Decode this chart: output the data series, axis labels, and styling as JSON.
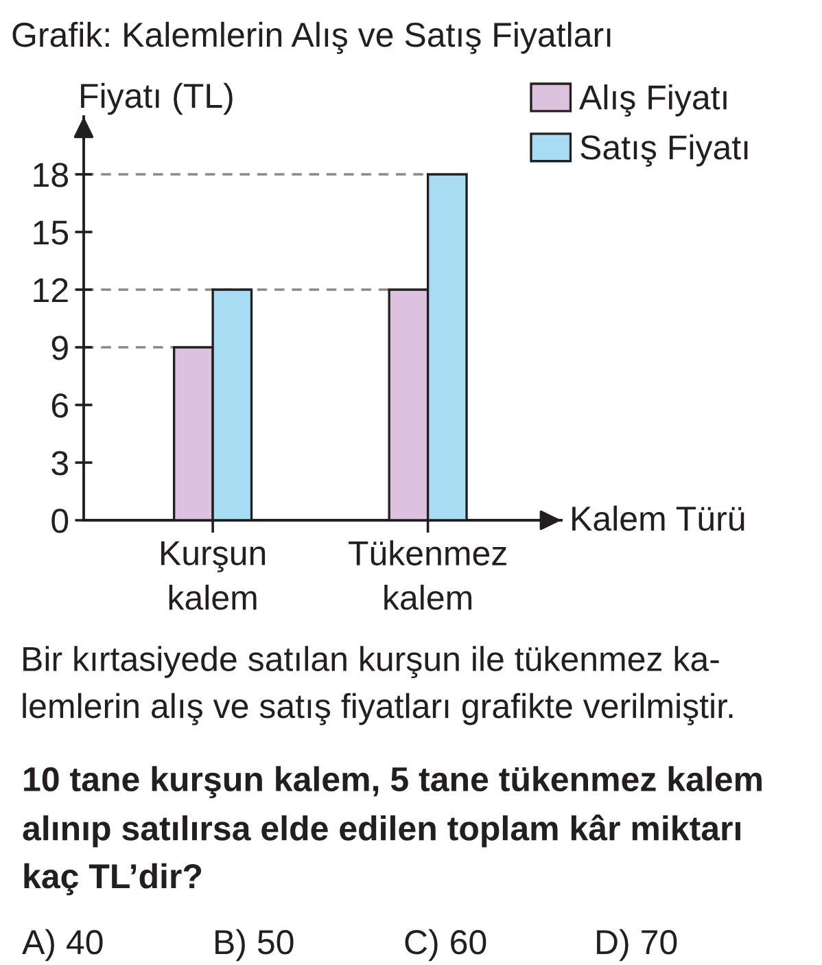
{
  "chart_data": {
    "type": "bar",
    "title": "Grafik: Kalemlerin Alış ve Satış Fiyatları",
    "ylabel": "Fiyatı (TL)",
    "xlabel": "Kalem Türü",
    "categories": [
      "Kurşun\nkalem",
      "Tükenmez\nkalem"
    ],
    "series": [
      {
        "name": "Alış Fiyatı",
        "color": "#dcc2df",
        "values": [
          9,
          12
        ]
      },
      {
        "name": "Satış Fiyatı",
        "color": "#a8dcf3",
        "values": [
          12,
          18
        ]
      }
    ],
    "ylim": [
      0,
      21
    ],
    "yticks": [
      0,
      3,
      6,
      9,
      12,
      15,
      18
    ],
    "grid": false,
    "legend": "top right",
    "ref_lines": [
      {
        "axis": "y",
        "value": 18,
        "line_style": "dashed",
        "color": "#8a8a8a"
      },
      {
        "axis": "y",
        "value": 12,
        "line_style": "dashed",
        "color": "#8a8a8a"
      },
      {
        "axis": "y",
        "value": 9,
        "line_style": "dashed",
        "color": "#8a8a8a"
      }
    ],
    "annotations": [
      "Bir kırtasiyede satılan kurşun ile tükenmez ka-\nlemlerin alış ve satış fiyatları grafikte verilmiştir.",
      "10 tane kurşun kalem, 5 tane tükenmez kalem\nalınıp satılırsa elde edilen toplam kâr miktarı\nkaç TL’dir?",
      "A) 40",
      "B) 50",
      "C) 60",
      "D) 70"
    ]
  }
}
